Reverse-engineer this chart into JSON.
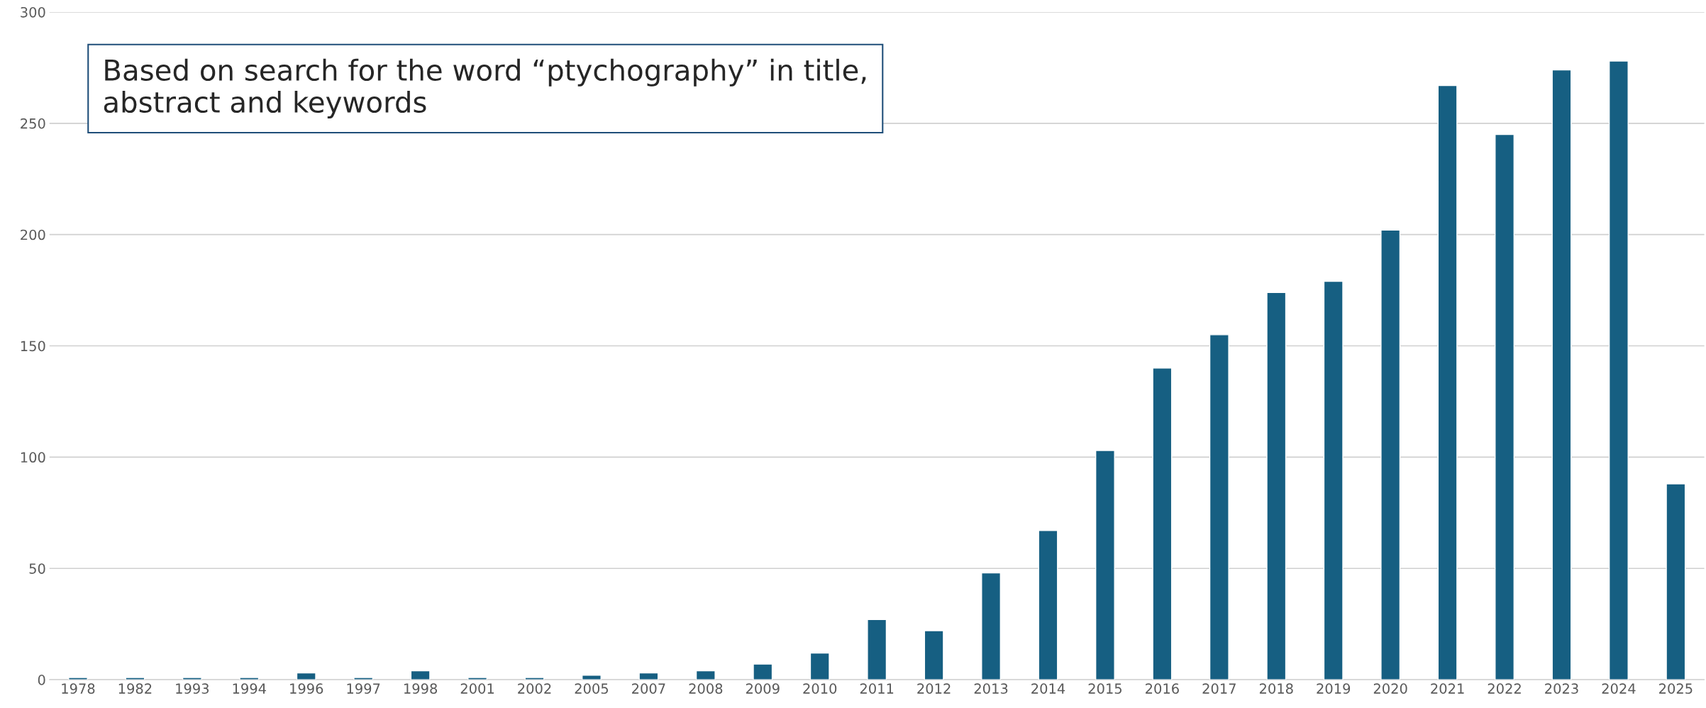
{
  "chart_data": {
    "type": "bar",
    "categories": [
      "1978",
      "1982",
      "1993",
      "1994",
      "1996",
      "1997",
      "1998",
      "2001",
      "2002",
      "2005",
      "2007",
      "2008",
      "2009",
      "2010",
      "2011",
      "2012",
      "2013",
      "2014",
      "2015",
      "2016",
      "2017",
      "2018",
      "2019",
      "2020",
      "2021",
      "2022",
      "2023",
      "2024",
      "2025"
    ],
    "values": [
      1,
      1,
      1,
      1,
      3,
      1,
      4,
      1,
      1,
      2,
      3,
      4,
      7,
      12,
      27,
      22,
      48,
      67,
      103,
      140,
      155,
      174,
      179,
      202,
      267,
      245,
      274,
      278,
      88
    ],
    "color": "#165f82",
    "ylim": [
      0,
      300
    ],
    "yticks": [
      0,
      50,
      100,
      150,
      200,
      250,
      300
    ],
    "grid": "y",
    "annotations": [
      "Based on search for the word “ptychography” in title, abstract and keywords"
    ]
  }
}
